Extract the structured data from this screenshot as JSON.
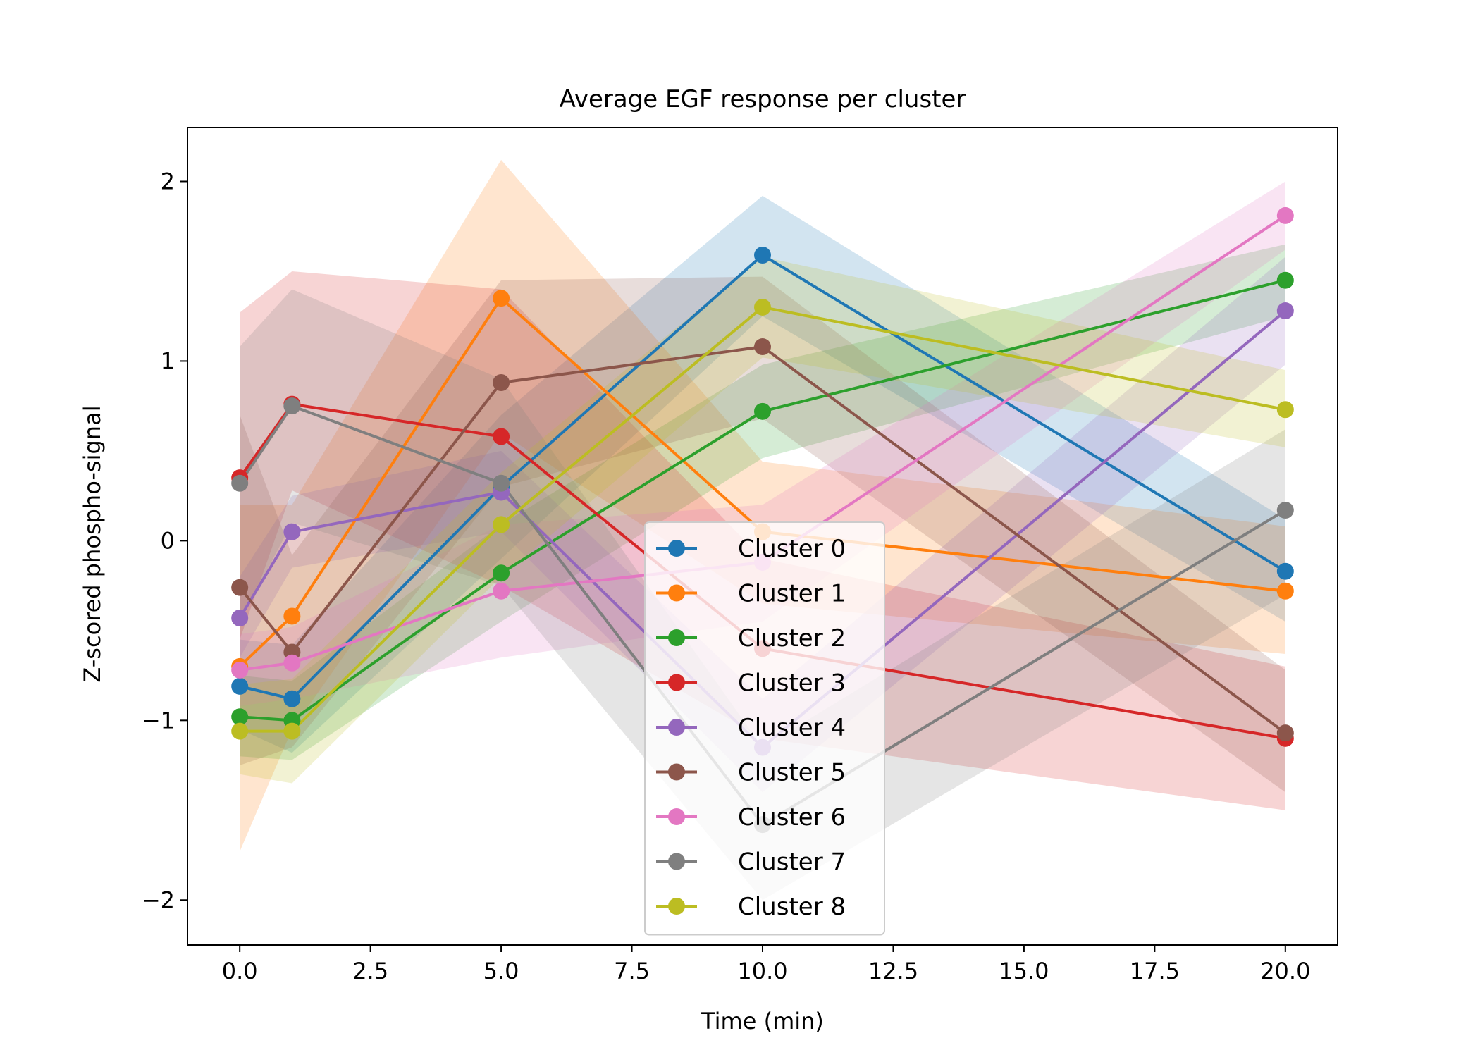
{
  "chart_data": {
    "type": "line",
    "title": "Average EGF response per cluster",
    "xlabel": "Time (min)",
    "ylabel": "Z-scored phospho-signal",
    "xlim": [
      -1,
      21
    ],
    "ylim": [
      -2.25,
      2.3
    ],
    "x_ticks": [
      0.0,
      2.5,
      5.0,
      7.5,
      10.0,
      12.5,
      15.0,
      17.5,
      20.0
    ],
    "x_tick_labels": [
      "0.0",
      "2.5",
      "5.0",
      "7.5",
      "10.0",
      "12.5",
      "15.0",
      "17.5",
      "20.0"
    ],
    "y_ticks": [
      -2,
      -1,
      0,
      1,
      2
    ],
    "y_tick_labels": [
      "−2",
      "−1",
      "0",
      "1",
      "2"
    ],
    "grid": false,
    "legend_position": "lower-center",
    "x": [
      0,
      1,
      5,
      10,
      20
    ],
    "series": [
      {
        "name": "Cluster 0",
        "color": "#1f77b4",
        "values": [
          -0.81,
          -0.88,
          0.3,
          1.59,
          -0.17
        ],
        "lower": [
          -1.05,
          -1.18,
          -0.1,
          1.25,
          -0.45
        ],
        "upper": [
          -0.55,
          -0.58,
          0.7,
          1.92,
          0.12
        ]
      },
      {
        "name": "Cluster 1",
        "color": "#ff7f0e",
        "values": [
          -0.7,
          -0.42,
          1.35,
          0.05,
          -0.28
        ],
        "lower": [
          -1.73,
          -1.05,
          0.6,
          -0.35,
          -0.63
        ],
        "upper": [
          0.2,
          0.2,
          2.12,
          0.44,
          0.08
        ]
      },
      {
        "name": "Cluster 2",
        "color": "#2ca02c",
        "values": [
          -0.98,
          -1.0,
          -0.18,
          0.72,
          1.45
        ],
        "lower": [
          -1.2,
          -1.22,
          -0.45,
          0.46,
          1.25
        ],
        "upper": [
          -0.75,
          -0.78,
          0.09,
          0.98,
          1.65
        ]
      },
      {
        "name": "Cluster 3",
        "color": "#d62728",
        "values": [
          0.35,
          0.76,
          0.58,
          -0.6,
          -1.1
        ],
        "lower": [
          -0.55,
          0.28,
          -0.25,
          -1.1,
          -1.5
        ],
        "upper": [
          1.27,
          1.5,
          1.4,
          -0.1,
          -0.7
        ]
      },
      {
        "name": "Cluster 4",
        "color": "#9467bd",
        "values": [
          -0.43,
          0.05,
          0.27,
          -1.15,
          1.28
        ],
        "lower": [
          -0.65,
          -0.15,
          0.05,
          -1.4,
          0.98
        ],
        "upper": [
          -0.2,
          0.25,
          0.5,
          -0.88,
          1.58
        ]
      },
      {
        "name": "Cluster 5",
        "color": "#8c564b",
        "values": [
          -0.26,
          -0.62,
          0.88,
          1.08,
          -1.07
        ],
        "lower": [
          -1.25,
          -1.15,
          0.3,
          0.68,
          -1.4
        ],
        "upper": [
          0.7,
          -0.08,
          1.45,
          1.47,
          -0.72
        ]
      },
      {
        "name": "Cluster 6",
        "color": "#e377c2",
        "values": [
          -0.72,
          -0.68,
          -0.28,
          -0.12,
          1.81
        ],
        "lower": [
          -0.92,
          -0.88,
          -0.65,
          -0.45,
          1.62
        ],
        "upper": [
          -0.52,
          -0.48,
          0.09,
          0.2,
          2.0
        ]
      },
      {
        "name": "Cluster 7",
        "color": "#7f7f7f",
        "values": [
          0.32,
          0.75,
          0.32,
          -1.58,
          0.17
        ],
        "lower": [
          -0.45,
          0.1,
          -0.25,
          -2.0,
          -0.3
        ],
        "upper": [
          1.08,
          1.4,
          0.9,
          -1.15,
          0.62
        ]
      },
      {
        "name": "Cluster 8",
        "color": "#bcbd22",
        "values": [
          -1.06,
          -1.06,
          0.09,
          1.3,
          0.73
        ],
        "lower": [
          -1.3,
          -1.35,
          -0.2,
          1.02,
          0.52
        ],
        "upper": [
          -0.8,
          -0.77,
          0.38,
          1.58,
          0.95
        ]
      }
    ]
  }
}
